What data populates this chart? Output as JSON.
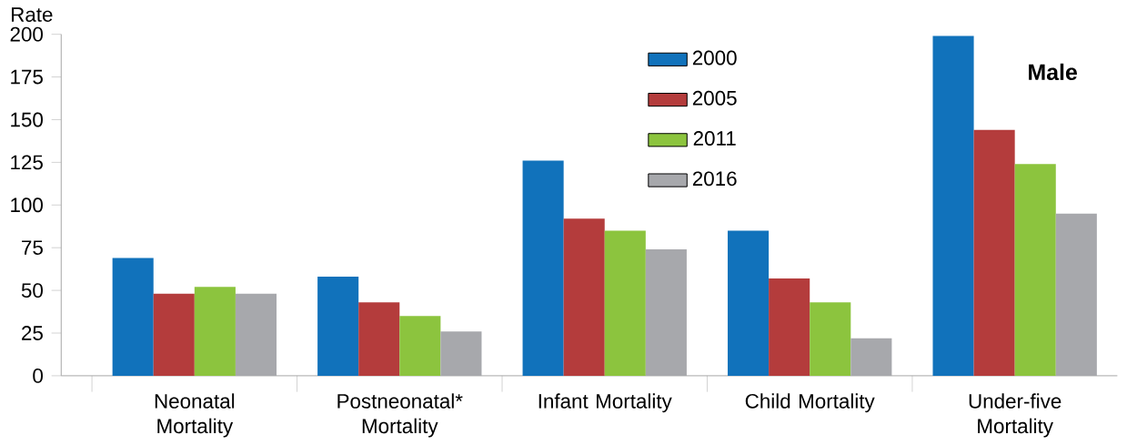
{
  "chart_data": {
    "type": "bar",
    "ylabel": "Rate",
    "categories": [
      "Neonatal Mortality",
      "Postneonatal* Mortality",
      "Infant Mortality",
      "Child Mortality",
      "Under-five Mortality"
    ],
    "series": [
      {
        "name": "2000",
        "color": "#1172bb",
        "values": [
          69,
          58,
          126,
          85,
          199
        ]
      },
      {
        "name": "2005",
        "color": "#b43c3c",
        "values": [
          48,
          43,
          92,
          57,
          144
        ]
      },
      {
        "name": "2011",
        "color": "#8cc43e",
        "values": [
          52,
          35,
          85,
          43,
          124
        ]
      },
      {
        "name": "2016",
        "color": "#a7a8ac",
        "values": [
          48,
          26,
          74,
          22,
          95
        ]
      }
    ],
    "ylim": [
      0,
      200
    ],
    "yticks": [
      0,
      25,
      50,
      75,
      100,
      125,
      150,
      175,
      200
    ],
    "grid": false,
    "legend": "top",
    "annotations": [
      "Male"
    ]
  }
}
